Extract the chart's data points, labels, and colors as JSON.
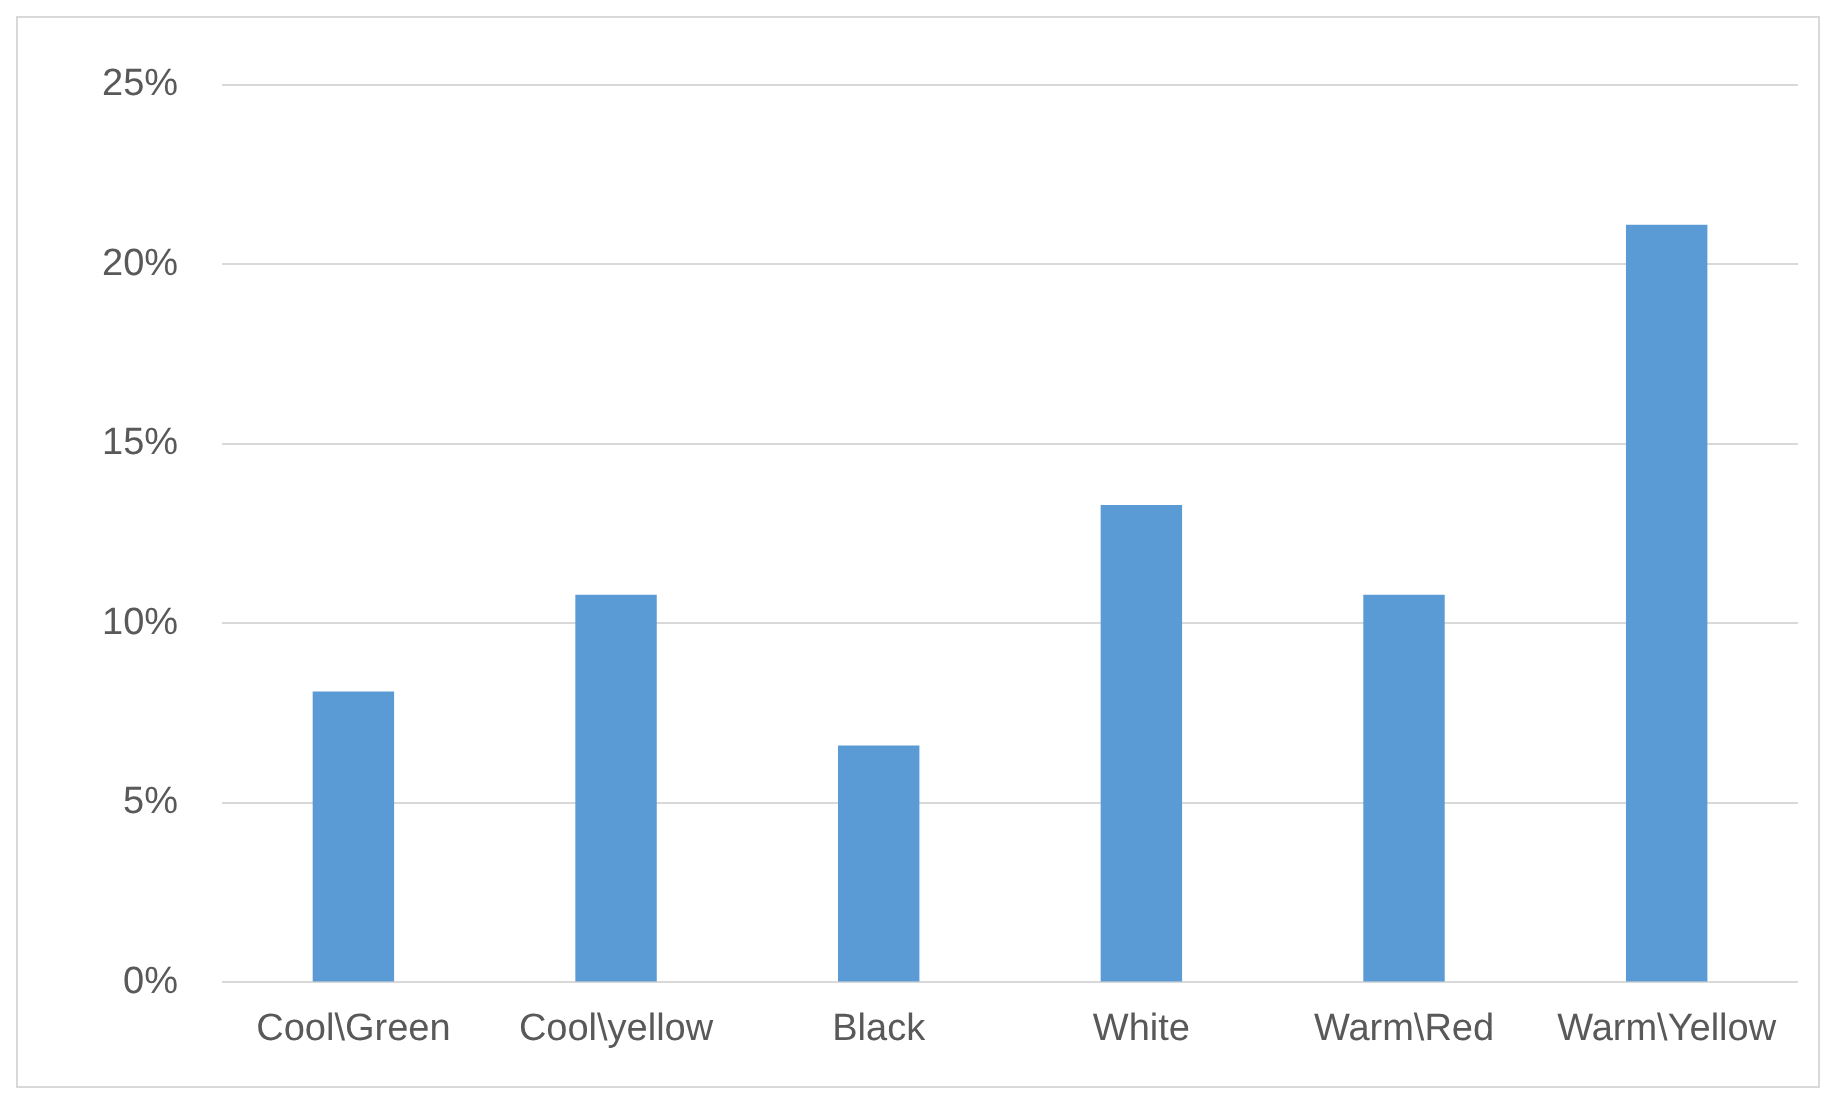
{
  "chart_data": {
    "type": "bar",
    "categories": [
      "Cool\\Green",
      "Cool\\yellow",
      "Black",
      "White",
      "Warm\\Red",
      "Warm\\Yellow"
    ],
    "values": [
      8.1,
      10.8,
      6.6,
      13.3,
      10.8,
      21.1
    ],
    "color": "#5b9bd5",
    "ylim": [
      0,
      25
    ],
    "yticks": [
      {
        "value": 0,
        "label": "0%"
      },
      {
        "value": 5,
        "label": "5%"
      },
      {
        "value": 10,
        "label": "10%"
      },
      {
        "value": 15,
        "label": "15%"
      },
      {
        "value": 20,
        "label": "20%"
      },
      {
        "value": 25,
        "label": "25%"
      }
    ],
    "grid": "y"
  }
}
